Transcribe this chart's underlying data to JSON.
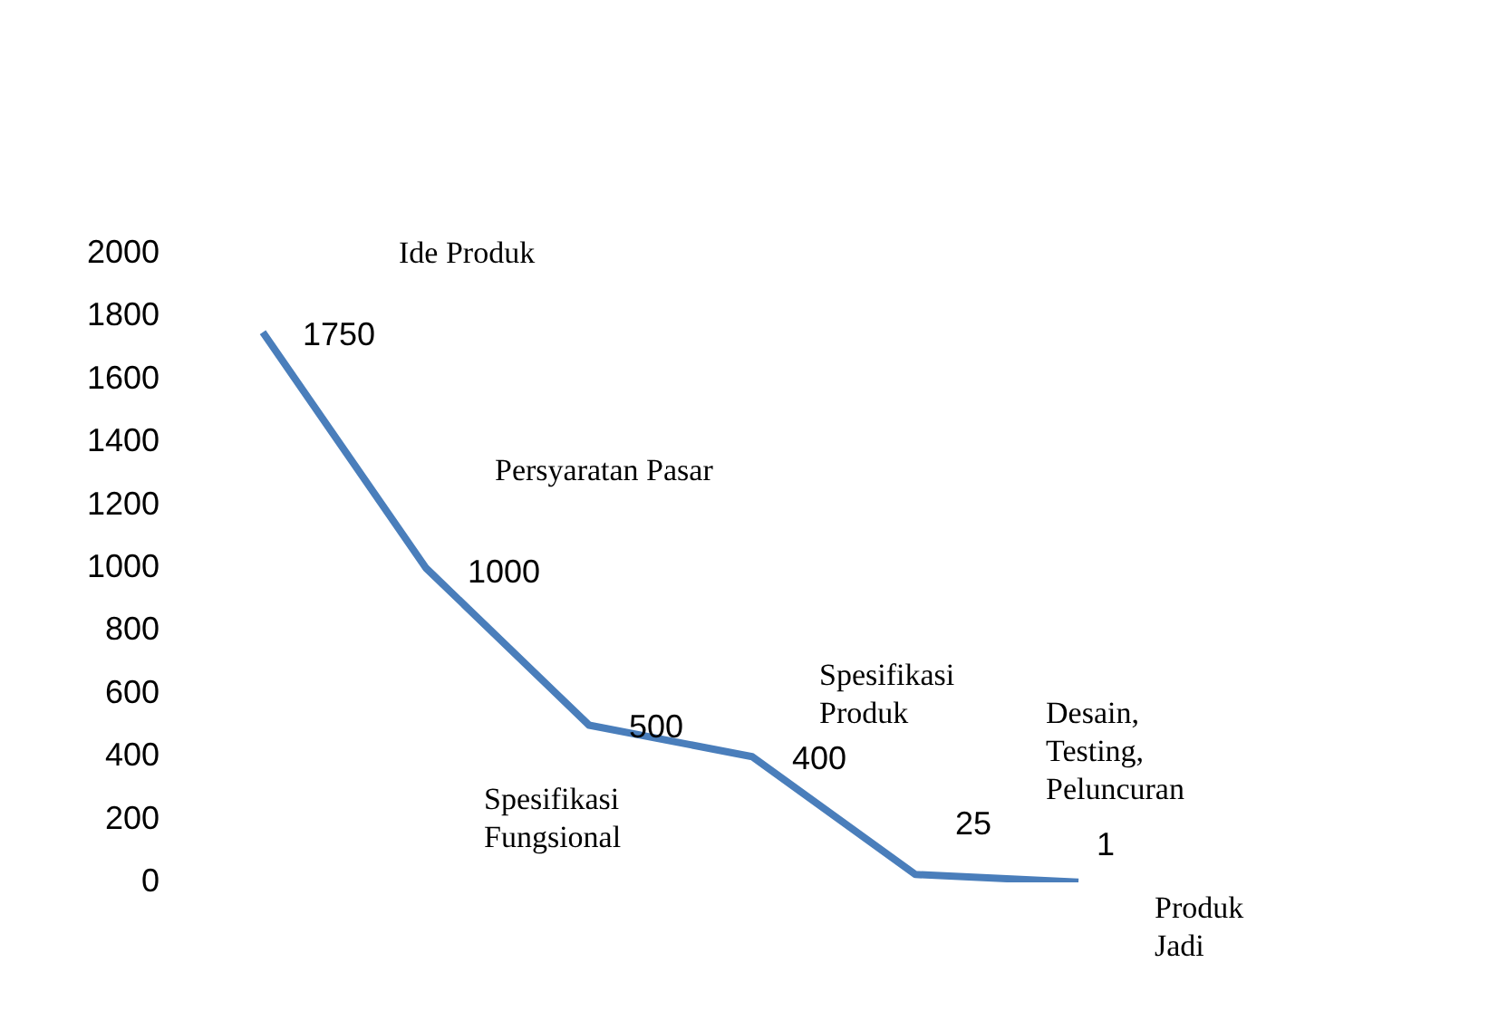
{
  "chart_data": {
    "type": "line",
    "categories": [
      null,
      null,
      null,
      null,
      null,
      null
    ],
    "series": [
      {
        "color": "#4a7ebb",
        "values": [
          1750,
          1000,
          500,
          400,
          25,
          1
        ]
      }
    ],
    "ylim": [
      0,
      2000
    ],
    "yticks": [
      0,
      200,
      400,
      600,
      800,
      1000,
      1200,
      1400,
      1600,
      1800,
      2000
    ],
    "grid": false,
    "legend": false,
    "marker": "none",
    "line_style": "solid",
    "data_labels": true,
    "tick_labels": "y",
    "annotations": [
      "Ide Produk",
      "Persyaratan Pasar",
      "Spesifikasi Fungsional",
      "Spesifikasi Produk",
      "Desain, Testing, Peluncuran",
      "Produk Jadi"
    ]
  }
}
